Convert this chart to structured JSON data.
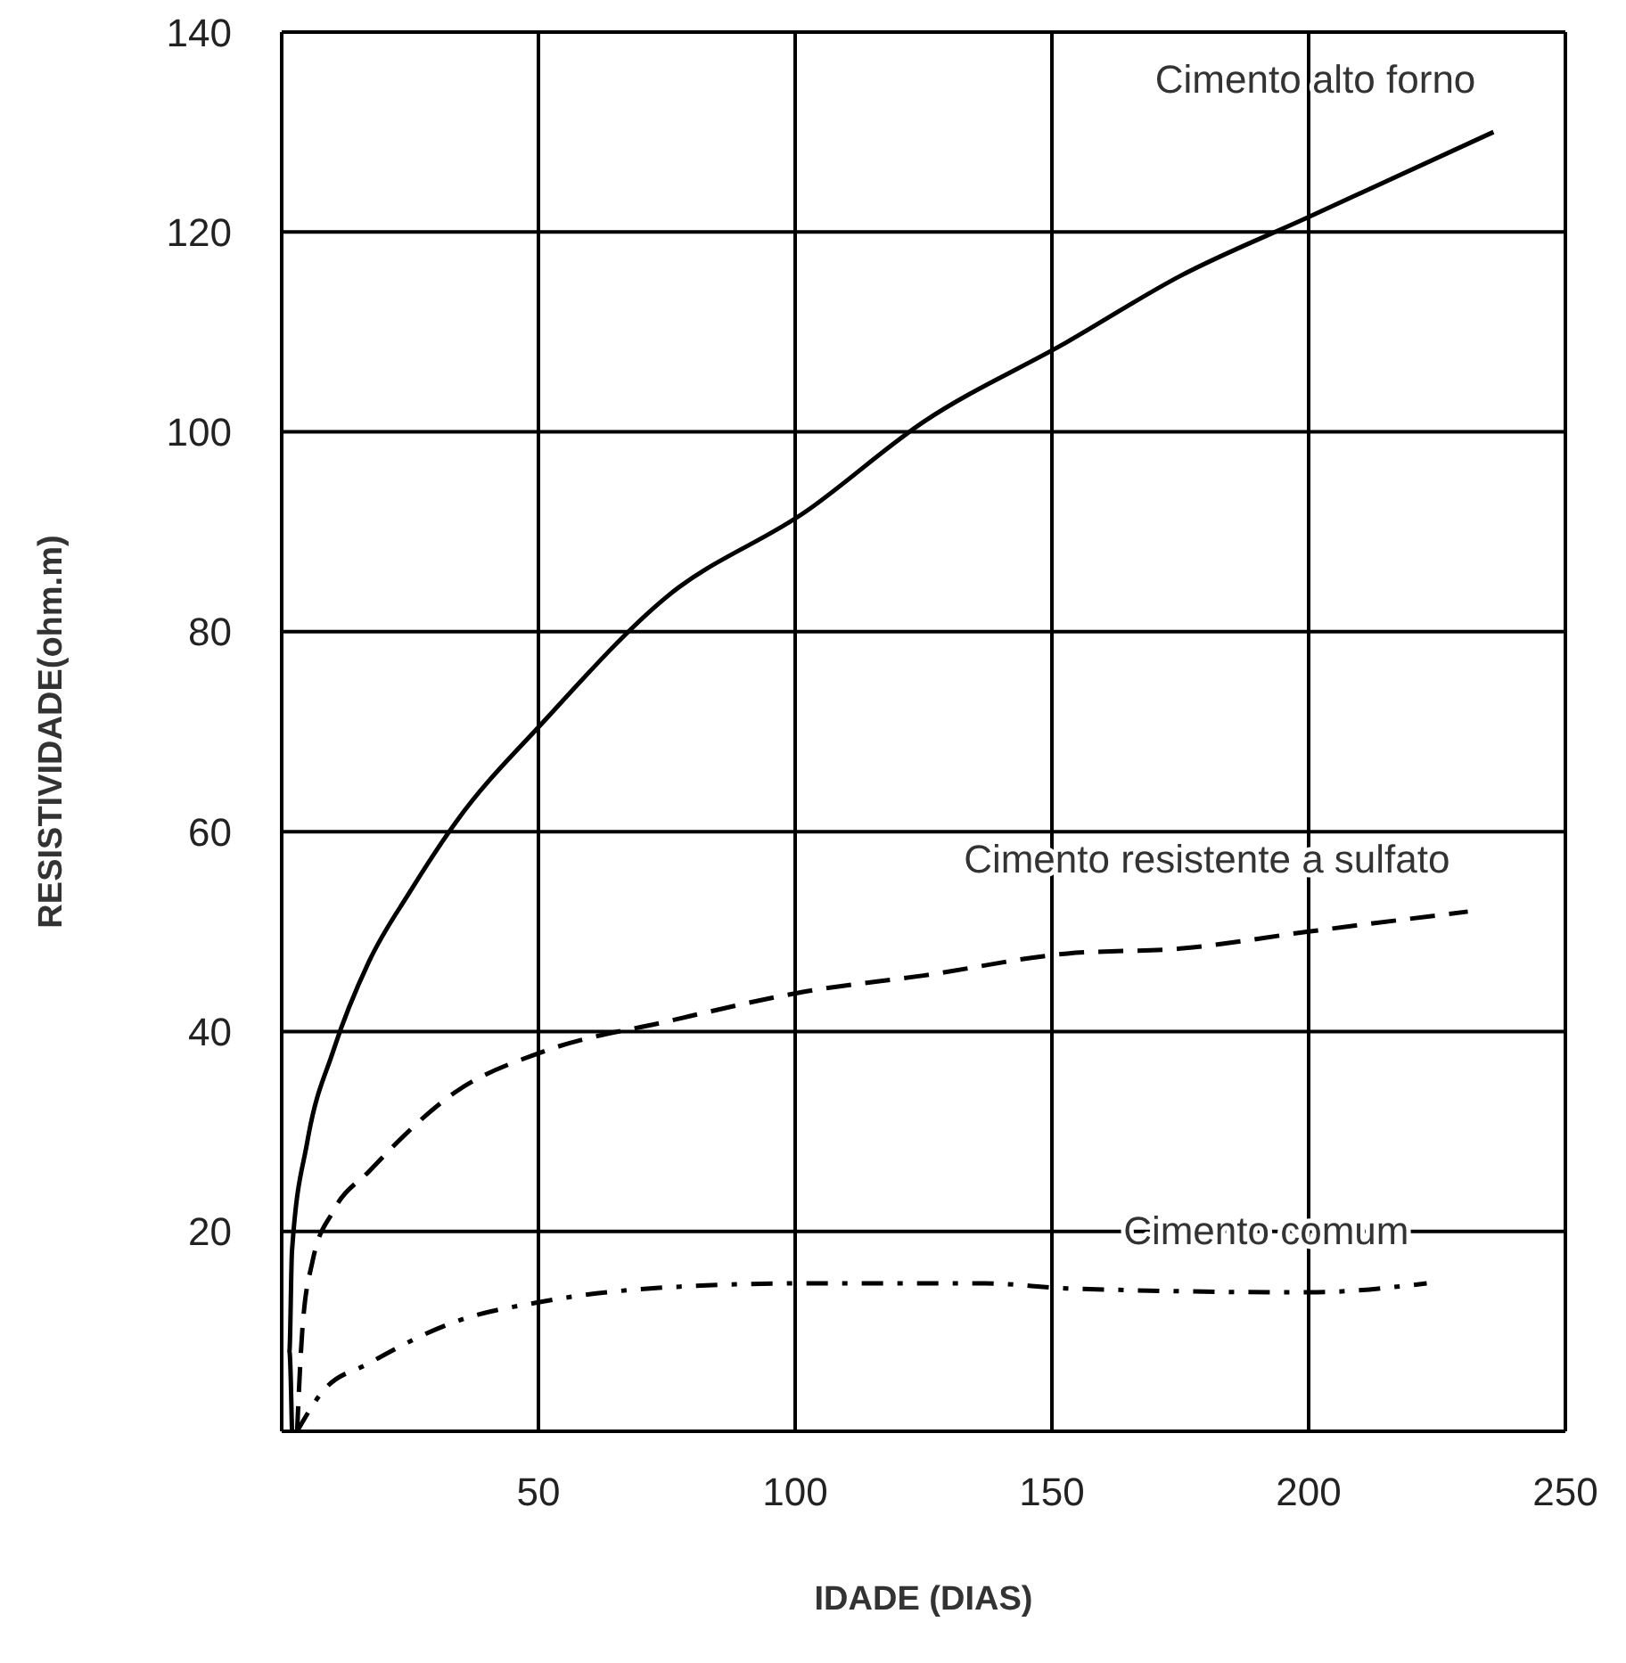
{
  "chart_data": {
    "type": "line",
    "xlabel": "IDADE (DIAS)",
    "ylabel": "RESISTIVIDADE(ohm.m)",
    "xlim": [
      0,
      250
    ],
    "xticks": [
      50,
      100,
      150,
      200,
      250
    ],
    "ylim": [
      0,
      140
    ],
    "yticks": [
      20,
      40,
      60,
      80,
      100,
      120,
      140
    ],
    "grid": true,
    "legend": false,
    "marker": "none",
    "series": [
      {
        "name": "Cimento alto forno",
        "color": "#000000",
        "line_style": "solid",
        "x": [
          2,
          1.5,
          2,
          5,
          10,
          17,
          25,
          34,
          51,
          75,
          102,
          125,
          153,
          175,
          200,
          236
        ],
        "values": [
          0,
          8,
          18,
          29,
          38,
          47,
          54,
          61,
          71,
          83.5,
          92,
          101,
          109,
          115.6,
          121.5,
          130
        ]
      },
      {
        "name": "Cimento resistente a sulfato",
        "color": "#000000",
        "line_style": "dashed",
        "x": [
          3,
          4,
          6,
          10,
          17,
          34,
          51,
          75,
          102,
          125,
          153,
          175,
          200,
          231
        ],
        "values": [
          0,
          10,
          17,
          22,
          26,
          34,
          38,
          41,
          44,
          45.6,
          47.8,
          48.3,
          50,
          52
        ]
      },
      {
        "name": "Cimento comum",
        "color": "#000000",
        "line_style": "dotted",
        "x": [
          3,
          8,
          17,
          34,
          51,
          75,
          102,
          137,
          153,
          200,
          223
        ],
        "values": [
          0,
          4,
          6.8,
          11,
          13,
          14.4,
          14.8,
          14.8,
          14.3,
          13.9,
          14.8
        ]
      }
    ]
  }
}
